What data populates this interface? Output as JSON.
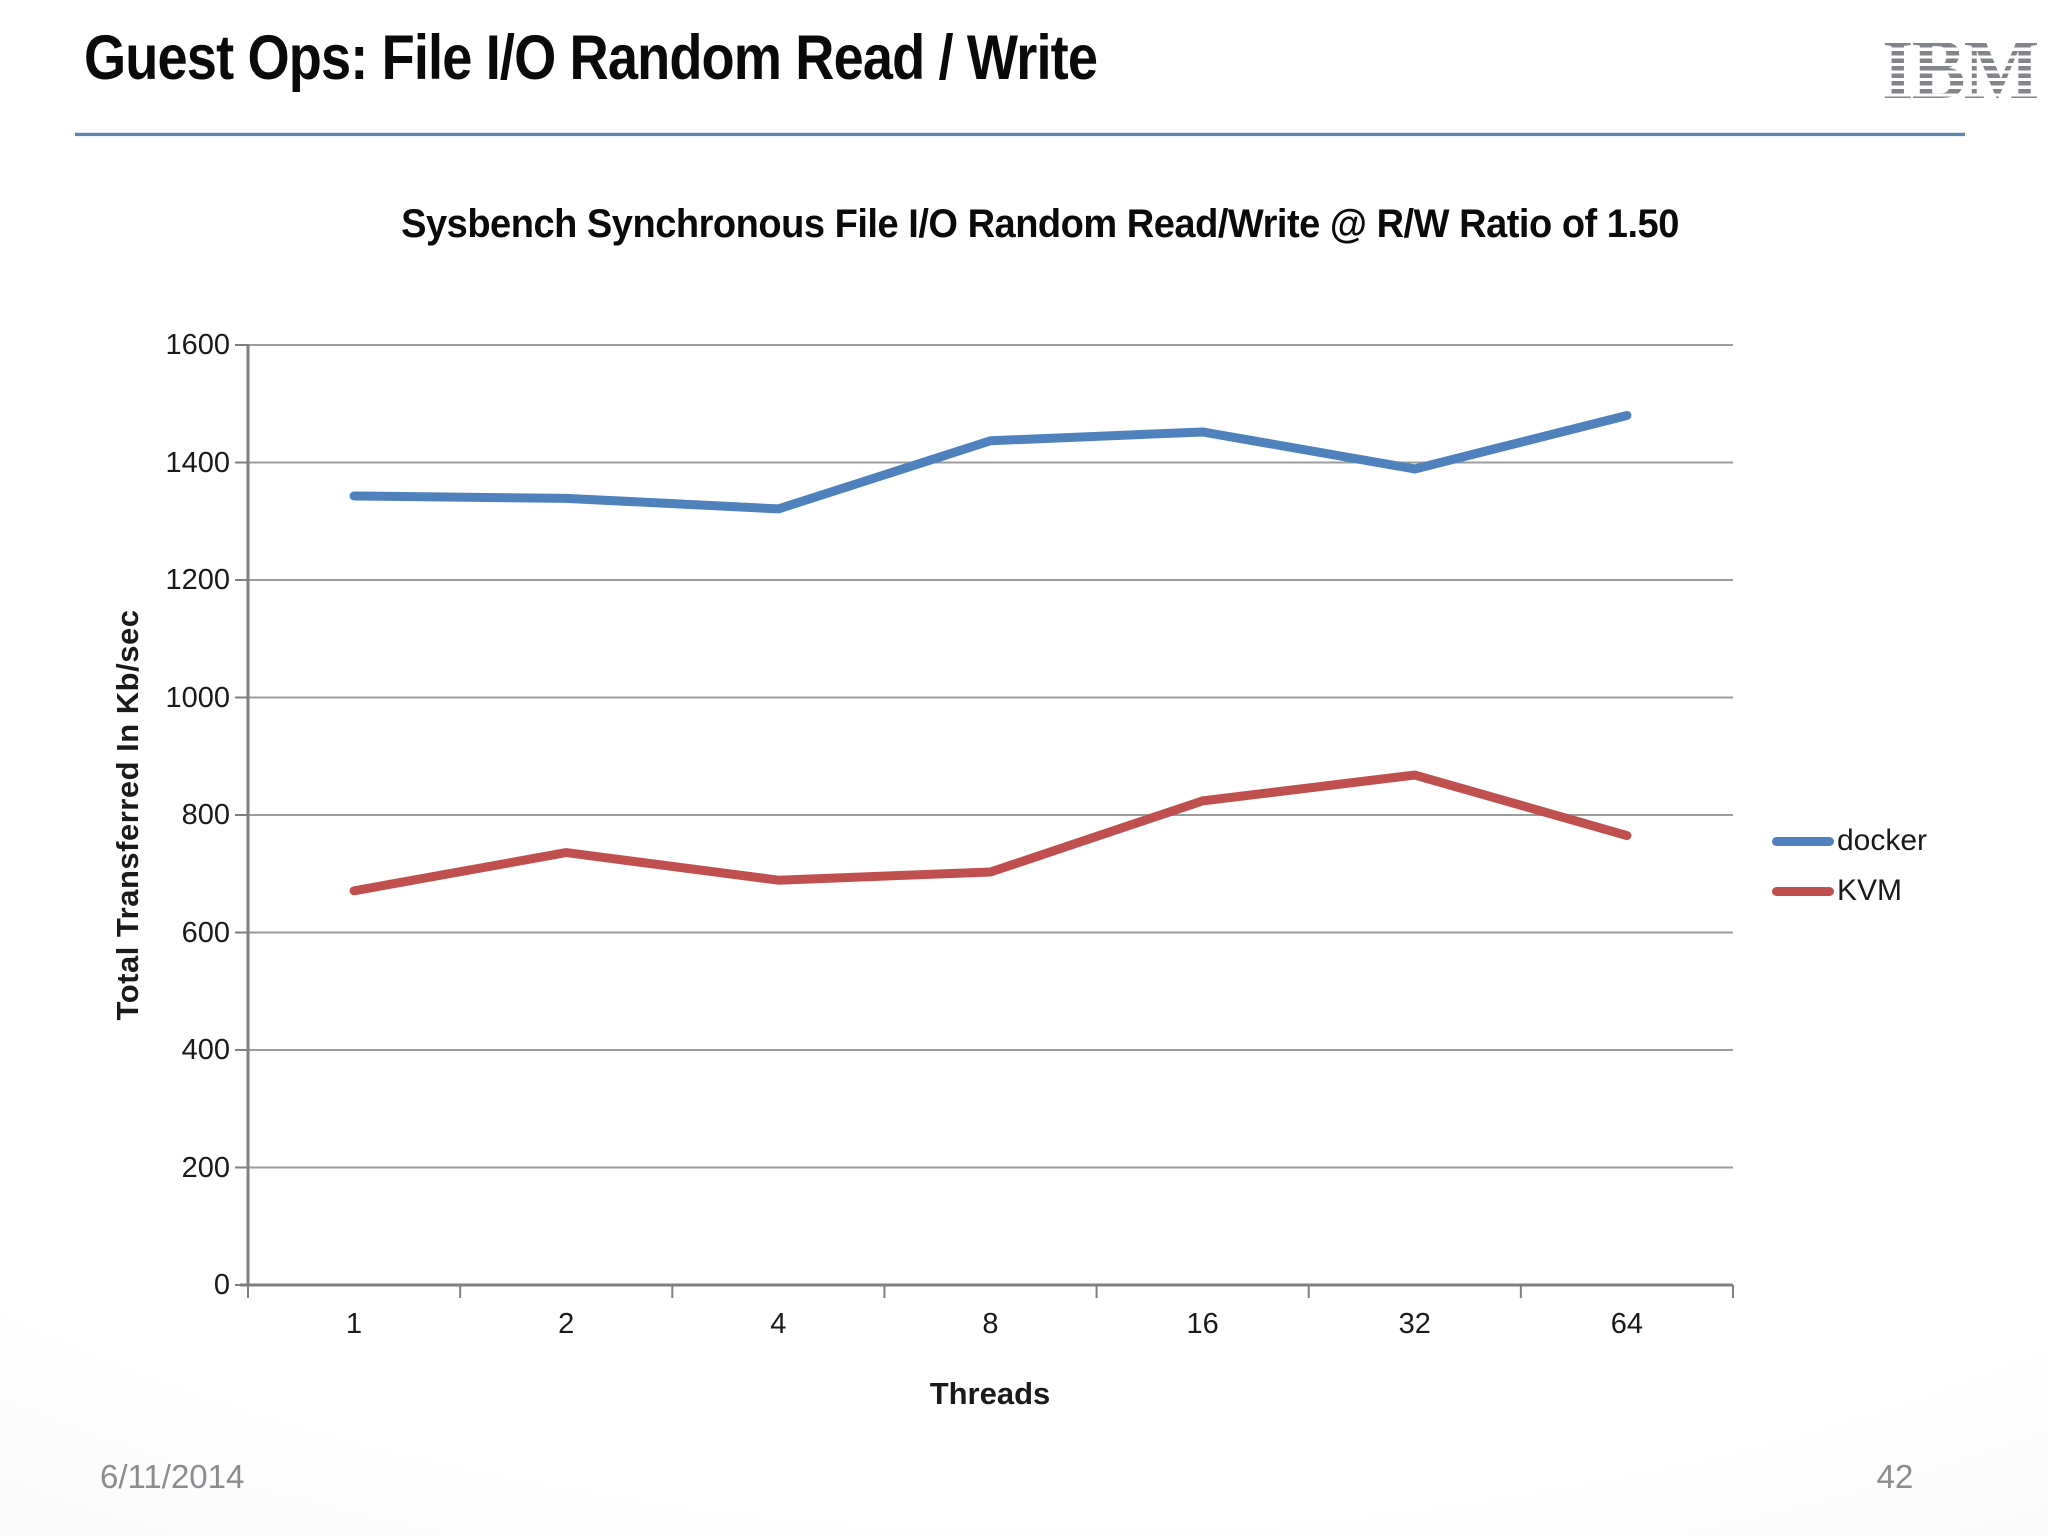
{
  "slide": {
    "title": "Guest Ops: File I/O Random Read / Write",
    "logo_text": "IBM",
    "footer_date": "6/11/2014",
    "page_number": "42"
  },
  "chart_data": {
    "type": "line",
    "title": "Sysbench Synchronous File I/O Random Read/Write @ R/W Ratio of 1.50",
    "xlabel": "Threads",
    "ylabel": "Total Transferred In Kb/sec",
    "categories": [
      "1",
      "2",
      "4",
      "8",
      "16",
      "32",
      "64"
    ],
    "yticks": [
      "0",
      "200",
      "400",
      "600",
      "800",
      "1000",
      "1200",
      "1400",
      "1600"
    ],
    "ylim": [
      0,
      1600
    ],
    "grid": true,
    "legend_position": "right",
    "series": [
      {
        "name": "docker",
        "color": "#4F81BD",
        "values": [
          1343,
          1339,
          1321,
          1437,
          1452,
          1389,
          1480
        ]
      },
      {
        "name": "KVM",
        "color": "#C0504D",
        "values": [
          671,
          736,
          689,
          703,
          824,
          868,
          765
        ]
      }
    ],
    "colors": {
      "gridline": "#9c9c9c",
      "axis": "#808080",
      "docker": "#4F81BD",
      "kvm": "#C0504D"
    }
  }
}
